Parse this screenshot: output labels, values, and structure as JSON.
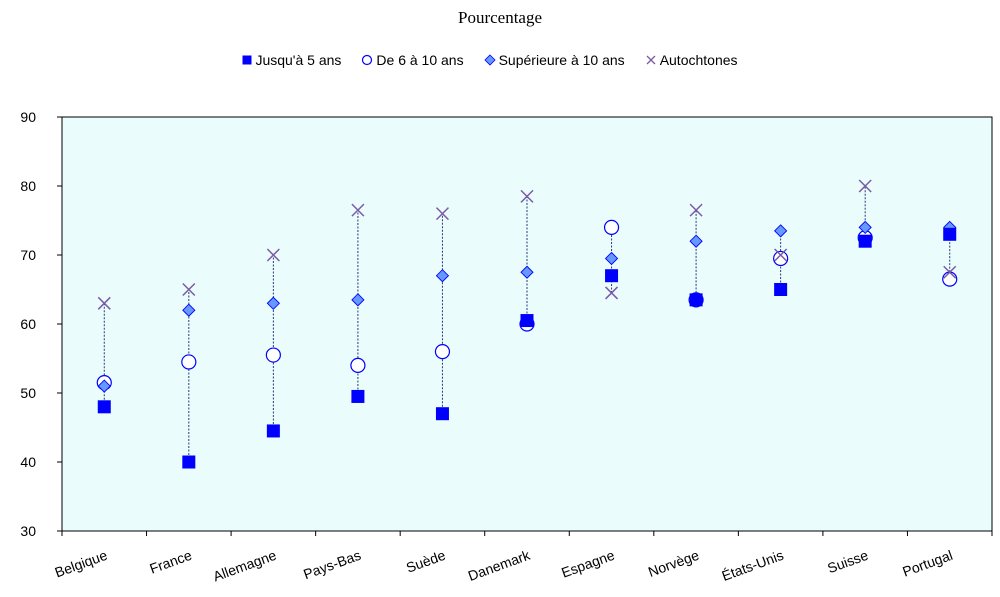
{
  "chart_data": {
    "type": "scatter",
    "title": "Pourcentage",
    "categories": [
      "Belgique",
      "France",
      "Allemagne",
      "Pays-Bas",
      "Suède",
      "Danemark",
      "Espagne",
      "Norvège",
      "États-Unis",
      "Suisse",
      "Portugal"
    ],
    "series": [
      {
        "name": "Jusqu'à 5 ans",
        "marker": "square",
        "color": "#0000ff",
        "values": [
          48,
          40,
          44.5,
          49.5,
          47,
          60.5,
          67,
          63.5,
          65,
          72,
          73
        ]
      },
      {
        "name": "De 6 à 10 ans",
        "marker": "circle",
        "color": "#0000ff",
        "values": [
          51.5,
          54.5,
          55.5,
          54,
          56,
          60,
          74,
          63.5,
          69.5,
          72.5,
          66.5
        ]
      },
      {
        "name": "Supérieure à 10 ans",
        "marker": "diamond",
        "color": "#6699ff",
        "values": [
          51,
          62,
          63,
          63.5,
          67,
          67.5,
          69.5,
          72,
          73.5,
          74,
          74
        ]
      },
      {
        "name": "Autochtones",
        "marker": "x",
        "color": "#7b5aa6",
        "values": [
          63,
          65,
          70,
          76.5,
          76,
          78.5,
          64.5,
          76.5,
          70,
          80,
          67.5
        ]
      }
    ],
    "ylim": [
      30,
      90
    ],
    "yticks": [
      30,
      40,
      50,
      60,
      70,
      80,
      90
    ],
    "grid": false,
    "legend_position": "top",
    "plot_background": "#eafcfc"
  }
}
